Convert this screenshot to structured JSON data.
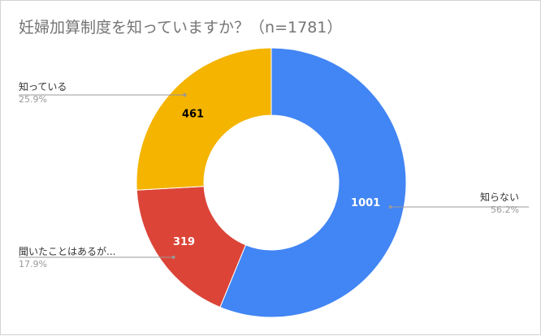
{
  "chart_data": {
    "type": "pie",
    "donut": true,
    "title": "妊婦加算制度を知っていますか？（n=1781）",
    "slices": [
      {
        "label": "知らない",
        "value": 1001,
        "percent": "56.2%",
        "color": "#4285f4",
        "value_color": "#ffffff"
      },
      {
        "label": "聞いたことはあるが...",
        "value": 319,
        "percent": "17.9%",
        "color": "#db4437",
        "value_color": "#ffffff"
      },
      {
        "label": "知っている",
        "value": 461,
        "percent": "25.9%",
        "color": "#f4b400",
        "value_color": "#000000"
      }
    ],
    "start": "top",
    "direction": "clockwise",
    "legend": "callout labels"
  }
}
